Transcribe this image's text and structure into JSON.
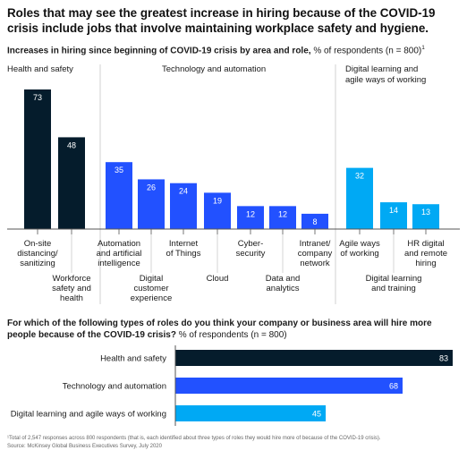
{
  "title": "Roles that may see the greatest increase in hiring because of the COVID-19 crisis include jobs that involve maintaining workplace safety and hygiene.",
  "subtitle_bold": "Increases in hiring since beginning of COVID-19 crisis by area and role,",
  "subtitle_rest": " % of respondents (n = 800)",
  "subtitle_footnote_mark": "1",
  "question_bold": "For which of the following types of roles do you think your company or business area will hire more people because of the COVID-19 crisis?",
  "question_rest": " % of respondents (n = 800)",
  "footnote": "¹Total of 2,547 responses across 800 respondents (that is, each identified about three types of roles they would hire more of because of the COVID-19 crisis).",
  "source": "Source: McKinsey Global Business Executives Survey, July 2020",
  "colors": {
    "health": "#051c2c",
    "tech": "#2251ff",
    "digital": "#00a9f4",
    "divider": "#d0d0d0",
    "axis": "#555555"
  },
  "chart_data": [
    {
      "type": "bar",
      "groups": [
        {
          "label": "Health and safety",
          "color_key": "health",
          "roles": [
            {
              "label": [
                "On-site",
                "distancing/",
                "sanitizing"
              ],
              "value": 73
            },
            {
              "label": [
                "Workforce",
                "safety and",
                "health"
              ],
              "value": 48
            }
          ]
        },
        {
          "label": "Technology and automation",
          "color_key": "tech",
          "roles": [
            {
              "label": [
                "Automation",
                "and artificial",
                "intelligence"
              ],
              "value": 35
            },
            {
              "label": [
                "Digital",
                "customer",
                "experience"
              ],
              "value": 26
            },
            {
              "label": [
                "Internet",
                "of Things"
              ],
              "value": 24
            },
            {
              "label": [
                "Cloud"
              ],
              "value": 19
            },
            {
              "label": [
                "Cyber-",
                "security"
              ],
              "value": 12
            },
            {
              "label": [
                "Data and",
                "analytics"
              ],
              "value": 12
            },
            {
              "label": [
                "Intranet/",
                "company",
                "network"
              ],
              "value": 8
            }
          ]
        },
        {
          "label": [
            "Digital learning and",
            "agile ways of working"
          ],
          "color_key": "digital",
          "roles": [
            {
              "label": [
                "Agile ways",
                "of working"
              ],
              "value": 32
            },
            {
              "label": [
                "Digital learning",
                "and training"
              ],
              "value": 14
            },
            {
              "label": [
                "HR digital",
                "and remote",
                "hiring"
              ],
              "value": 13
            }
          ]
        }
      ]
    },
    {
      "type": "bar",
      "orientation": "horizontal",
      "categories": [
        "Health and safety",
        "Technology and automation",
        "Digital learning and agile ways of working"
      ],
      "values": [
        83,
        68,
        45
      ],
      "color_keys": [
        "health",
        "tech",
        "digital"
      ]
    }
  ]
}
